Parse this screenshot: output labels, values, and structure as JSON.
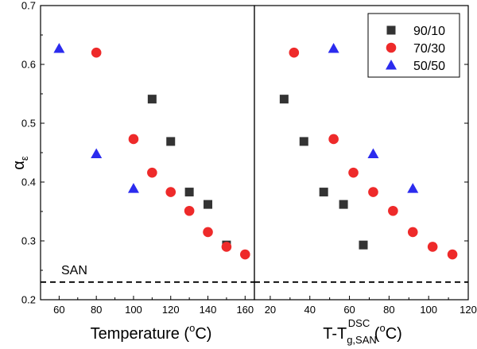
{
  "chart_data": {
    "type": "scatter",
    "y_axis": {
      "label_symbol": "α",
      "label_subscript": "ε",
      "ylim": [
        0.2,
        0.7
      ],
      "ticks": [
        0.2,
        0.3,
        0.4,
        0.5,
        0.6,
        0.7
      ],
      "tick_labels": [
        "0.2",
        "0.3",
        "0.4",
        "0.5",
        "0.6",
        "0.7"
      ]
    },
    "legend": {
      "placement": "top-right",
      "entries": [
        {
          "label": "90/10",
          "marker": "square",
          "color": "#333333"
        },
        {
          "label": "70/30",
          "marker": "circle",
          "color": "#ee2a2a"
        },
        {
          "label": "50/50",
          "marker": "triangle",
          "color": "#2b2bee"
        }
      ]
    },
    "reference_line": {
      "label": "SAN",
      "y": 0.23,
      "style": "dashed"
    },
    "panels": [
      {
        "xlabel": "Temperature (°C)",
        "xlabel_parts": {
          "main": "Temperature (",
          "sup": "o",
          "tail": "C)"
        },
        "xlim": [
          50,
          165
        ],
        "xticks": [
          60,
          80,
          100,
          120,
          140,
          160
        ],
        "xtick_labels": [
          "60",
          "80",
          "100",
          "120",
          "140",
          "160"
        ],
        "series": [
          {
            "name": "90/10",
            "x": [
              110,
              120,
              130,
              140,
              150
            ],
            "y": [
              0.541,
              0.469,
              0.383,
              0.362,
              0.293
            ]
          },
          {
            "name": "70/30",
            "x": [
              80,
              100,
              110,
              120,
              130,
              140,
              150,
              160
            ],
            "y": [
              0.62,
              0.473,
              0.416,
              0.383,
              0.351,
              0.315,
              0.29,
              0.277
            ]
          },
          {
            "name": "50/50",
            "x": [
              60,
              80,
              100
            ],
            "y": [
              0.627,
              0.448,
              0.389
            ]
          }
        ]
      },
      {
        "xlabel": "T-Tg,SAN DSC (°C)",
        "xlabel_parts": {
          "main": "T-T",
          "sub": "g,SAN",
          "sup": "DSC",
          "tail": " (",
          "sup2": "o",
          "tail2": "C)"
        },
        "xlim": [
          12,
          120
        ],
        "xticks": [
          20,
          40,
          60,
          80,
          100,
          120
        ],
        "xtick_labels": [
          "20",
          "40",
          "60",
          "80",
          "100",
          "120"
        ],
        "series": [
          {
            "name": "90/10",
            "x": [
              27,
              37,
              47,
              57,
              67
            ],
            "y": [
              0.541,
              0.469,
              0.383,
              0.362,
              0.293
            ]
          },
          {
            "name": "70/30",
            "x": [
              32,
              52,
              62,
              72,
              82,
              92,
              102,
              112
            ],
            "y": [
              0.62,
              0.473,
              0.416,
              0.383,
              0.351,
              0.315,
              0.29,
              0.277
            ]
          },
          {
            "name": "50/50",
            "x": [
              52,
              72,
              92
            ],
            "y": [
              0.627,
              0.448,
              0.389
            ]
          }
        ]
      }
    ]
  }
}
